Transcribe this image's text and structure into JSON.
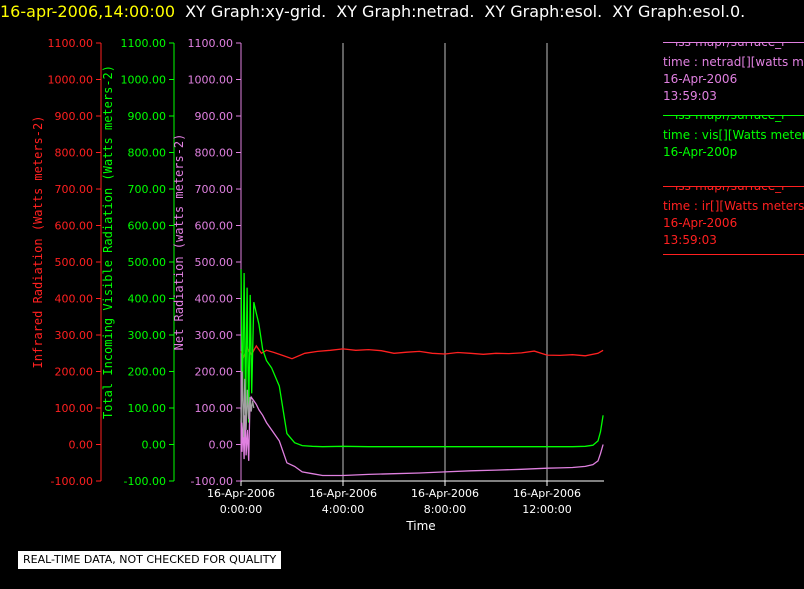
{
  "header": {
    "timestamp": "16-apr-2006,14:00:00",
    "graph_titles": [
      "XY Graph:xy-grid.",
      "XY Graph:netrad.",
      "XY Graph:esol.",
      "XY Graph:esol.0."
    ]
  },
  "legend": [
    {
      "name": "netrad",
      "color": "#e080e0",
      "lines": [
        "—iss-mapr/surface_r",
        "time : netrad[][watts m",
        "16-Apr-2006",
        "13:59:03"
      ]
    },
    {
      "name": "vis",
      "color": "#00ff00",
      "lines": [
        "—iss-mapr/surface_r",
        "time : vis[][Watts meters",
        "16-Apr-200p"
      ]
    },
    {
      "name": "ir",
      "color": "#ff2020",
      "lines": [
        "—iss-mapr/surface_r",
        "time : ir[][Watts meters",
        "16-Apr-2006",
        "13:59:03"
      ]
    }
  ],
  "disclaimer": "REAL-TIME DATA, NOT CHECKED FOR QUALITY",
  "chart_data": {
    "type": "line",
    "xlabel": "Time",
    "x_range_hours": [
      0,
      14.6
    ],
    "x_ticks": [
      {
        "hour": 0,
        "date": "16-Apr-2006",
        "time": "0:00:00"
      },
      {
        "hour": 4,
        "date": "16-Apr-2006",
        "time": "4:00:00"
      },
      {
        "hour": 8,
        "date": "16-Apr-2006",
        "time": "8:00:00"
      },
      {
        "hour": 12,
        "date": "16-Apr-2006",
        "time": "12:00:00"
      }
    ],
    "grid": "vertical lines at x ticks",
    "y_ticks": [
      "-100.00",
      "0.00",
      "100.00",
      "200.00",
      "300.00",
      "400.00",
      "500.00",
      "600.00",
      "700.00",
      "800.00",
      "900.00",
      "1000.00",
      "1100.00"
    ],
    "y_axes": [
      {
        "label": "Infrared Radiation (Watts meters-2)",
        "color": "#ff2020",
        "ylim": [
          -100,
          1100
        ]
      },
      {
        "label": "Total Incoming Visible Radiation (Watts meters-2)",
        "color": "#00ff00",
        "ylim": [
          -100,
          1100
        ]
      },
      {
        "label": "Net Radiation (watts meters-2)",
        "color": "#e080e0",
        "ylim": [
          -100,
          1100
        ]
      }
    ],
    "series": [
      {
        "name": "ir",
        "color": "#ff2020",
        "x": [
          0,
          0.1,
          0.25,
          0.4,
          0.6,
          0.8,
          1,
          1.3,
          1.6,
          2,
          2.5,
          3,
          3.5,
          4,
          4.5,
          5,
          5.5,
          6,
          6.5,
          7,
          7.5,
          8,
          8.5,
          9,
          9.5,
          10,
          10.5,
          11,
          11.5,
          12,
          12.5,
          13,
          13.5,
          14,
          14.2
        ],
        "y": [
          255,
          240,
          265,
          245,
          270,
          250,
          258,
          252,
          245,
          235,
          250,
          255,
          258,
          262,
          258,
          260,
          257,
          250,
          253,
          255,
          250,
          248,
          252,
          250,
          247,
          250,
          249,
          251,
          256,
          245,
          244,
          246,
          243,
          250,
          258
        ]
      },
      {
        "name": "vis",
        "color": "#00ff00",
        "x": [
          0,
          0.06,
          0.12,
          0.18,
          0.24,
          0.3,
          0.36,
          0.42,
          0.5,
          0.6,
          0.7,
          0.85,
          1,
          1.2,
          1.5,
          1.8,
          2.1,
          2.4,
          2.8,
          3.2,
          4,
          5,
          6,
          7,
          8,
          9,
          10,
          11,
          12,
          12.5,
          13,
          13.5,
          13.8,
          14,
          14.1,
          14.2
        ],
        "y": [
          480,
          120,
          470,
          90,
          430,
          60,
          410,
          140,
          390,
          360,
          330,
          260,
          230,
          210,
          160,
          30,
          5,
          -3,
          -5,
          -6,
          -5,
          -6,
          -6,
          -6,
          -6,
          -6,
          -6,
          -6,
          -6,
          -6,
          -6,
          -5,
          -2,
          10,
          35,
          80
        ]
      },
      {
        "name": "netrad",
        "color": "#e080e0",
        "x": [
          0,
          0.04,
          0.08,
          0.12,
          0.16,
          0.2,
          0.25,
          0.3,
          0.35,
          0.4,
          0.5,
          0.6,
          0.7,
          0.85,
          1,
          1.2,
          1.5,
          1.8,
          2.1,
          2.4,
          2.8,
          3.2,
          4,
          5,
          6,
          7,
          8,
          9,
          10,
          11,
          12,
          12.5,
          13,
          13.5,
          13.8,
          14,
          14.1,
          14.2
        ],
        "y": [
          100,
          -20,
          60,
          -40,
          80,
          -30,
          40,
          -45,
          110,
          130,
          120,
          110,
          95,
          80,
          60,
          40,
          10,
          -50,
          -60,
          -75,
          -80,
          -85,
          -85,
          -82,
          -80,
          -78,
          -75,
          -72,
          -70,
          -68,
          -65,
          -64,
          -63,
          -60,
          -55,
          -45,
          -25,
          0
        ]
      },
      {
        "name": "gray-trace",
        "color": "#a0a0a0",
        "x": [
          0,
          0.05,
          0.1,
          0.15,
          0.2,
          0.25,
          0.3,
          0.35,
          0.4,
          0.45,
          0.5
        ],
        "y": [
          60,
          200,
          20,
          180,
          40,
          150,
          70,
          130,
          90,
          120,
          100
        ]
      }
    ]
  }
}
